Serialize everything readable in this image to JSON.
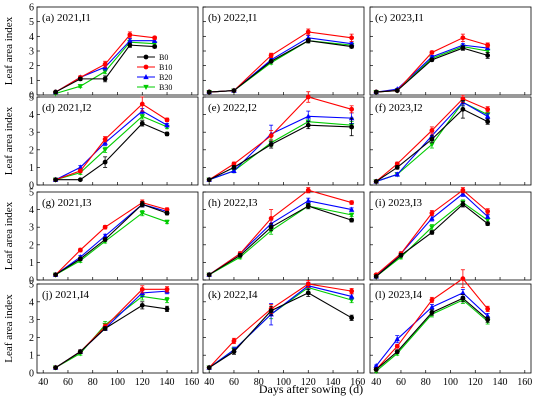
{
  "colors": {
    "B0": "#000000",
    "B10": "#ff0000",
    "B20": "#0000ff",
    "B30": "#00cc00"
  },
  "markers": {
    "B0": "circle",
    "B10": "circle",
    "B20": "triangle",
    "B30": "triangle-down"
  },
  "axes": {
    "ylabel": "Leaf area index",
    "xlabel": "Days after sowing (d)",
    "xticks": [
      40,
      60,
      80,
      100,
      120,
      140,
      160
    ],
    "yticks_top": [
      0,
      1,
      2,
      3,
      4,
      5,
      6
    ],
    "yticks_mid": [
      0,
      1,
      2,
      3,
      4,
      5
    ],
    "yticks_bot": [
      0,
      1,
      2,
      3,
      4,
      5
    ]
  },
  "legend": [
    "B0",
    "B10",
    "B20",
    "B30"
  ],
  "chart_data": [
    {
      "type": "line",
      "panel": "(a) 2021,I1",
      "row": 0,
      "col": 0,
      "ylim": [
        0,
        6
      ],
      "x": [
        50,
        70,
        90,
        110,
        130
      ],
      "series": [
        {
          "name": "B0",
          "values": [
            0.2,
            1.1,
            1.1,
            3.4,
            3.3
          ],
          "err": [
            0.05,
            0.1,
            0.2,
            0.15,
            0.1
          ]
        },
        {
          "name": "B10",
          "values": [
            0.2,
            1.2,
            2.1,
            4.1,
            3.9
          ],
          "err": [
            0.05,
            0.1,
            0.2,
            0.2,
            0.1
          ]
        },
        {
          "name": "B20",
          "values": [
            0.2,
            1.2,
            1.9,
            3.7,
            3.7
          ],
          "err": [
            0.05,
            0.1,
            0.2,
            0.15,
            0.1
          ]
        },
        {
          "name": "B30",
          "values": [
            0.1,
            0.6,
            1.6,
            3.6,
            3.5
          ],
          "err": [
            0.05,
            0.1,
            0.15,
            0.15,
            0.1
          ]
        }
      ]
    },
    {
      "type": "line",
      "panel": "(b) 2022,I1",
      "row": 0,
      "col": 1,
      "ylim": [
        0,
        6
      ],
      "x": [
        40,
        60,
        90,
        120,
        155
      ],
      "series": [
        {
          "name": "B0",
          "values": [
            0.2,
            0.3,
            2.3,
            3.7,
            3.3
          ],
          "err": [
            0.03,
            0.05,
            0.1,
            0.15,
            0.1
          ]
        },
        {
          "name": "B10",
          "values": [
            0.2,
            0.3,
            2.7,
            4.3,
            3.9
          ],
          "err": [
            0.03,
            0.05,
            0.15,
            0.2,
            0.25
          ]
        },
        {
          "name": "B20",
          "values": [
            0.2,
            0.3,
            2.4,
            3.9,
            3.5
          ],
          "err": [
            0.03,
            0.05,
            0.1,
            0.15,
            0.1
          ]
        },
        {
          "name": "B30",
          "values": [
            0.2,
            0.3,
            2.2,
            3.7,
            3.4
          ],
          "err": [
            0.03,
            0.05,
            0.1,
            0.1,
            0.1
          ]
        }
      ]
    },
    {
      "type": "line",
      "panel": "(c) 2023,I1",
      "row": 0,
      "col": 2,
      "ylim": [
        0,
        6
      ],
      "x": [
        40,
        57,
        85,
        110,
        130
      ],
      "series": [
        {
          "name": "B0",
          "values": [
            0.2,
            0.3,
            2.4,
            3.2,
            2.7
          ],
          "err": [
            0.03,
            0.05,
            0.1,
            0.15,
            0.2
          ]
        },
        {
          "name": "B10",
          "values": [
            0.2,
            0.3,
            2.9,
            3.9,
            3.4
          ],
          "err": [
            0.03,
            0.05,
            0.1,
            0.25,
            0.15
          ]
        },
        {
          "name": "B20",
          "values": [
            0.2,
            0.4,
            2.6,
            3.4,
            3.2
          ],
          "err": [
            0.03,
            0.05,
            0.1,
            0.1,
            0.1
          ]
        },
        {
          "name": "B30",
          "values": [
            0.2,
            0.3,
            2.5,
            3.3,
            3.0
          ],
          "err": [
            0.03,
            0.05,
            0.1,
            0.1,
            0.1
          ]
        }
      ]
    },
    {
      "type": "line",
      "panel": "(d) 2021,I2",
      "row": 1,
      "col": 0,
      "ylim": [
        0,
        5
      ],
      "x": [
        50,
        70,
        90,
        120,
        140
      ],
      "series": [
        {
          "name": "B0",
          "values": [
            0.3,
            0.3,
            1.3,
            3.5,
            2.9
          ],
          "err": [
            0.05,
            0.05,
            0.3,
            0.15,
            0.1
          ]
        },
        {
          "name": "B10",
          "values": [
            0.3,
            0.8,
            2.6,
            4.6,
            3.7
          ],
          "err": [
            0.05,
            0.1,
            0.15,
            0.4,
            0.1
          ]
        },
        {
          "name": "B20",
          "values": [
            0.3,
            1.0,
            2.4,
            4.2,
            3.4
          ],
          "err": [
            0.05,
            0.1,
            0.15,
            0.15,
            0.1
          ]
        },
        {
          "name": "B30",
          "values": [
            0.3,
            0.7,
            2.0,
            3.9,
            3.3
          ],
          "err": [
            0.05,
            0.1,
            0.15,
            0.15,
            0.1
          ]
        }
      ]
    },
    {
      "type": "line",
      "panel": "(e) 2022,I2",
      "row": 1,
      "col": 1,
      "ylim": [
        0,
        5
      ],
      "x": [
        40,
        60,
        90,
        120,
        155
      ],
      "series": [
        {
          "name": "B0",
          "values": [
            0.3,
            1.0,
            2.3,
            3.4,
            3.3
          ],
          "err": [
            0.05,
            0.1,
            0.2,
            0.2,
            0.5
          ]
        },
        {
          "name": "B10",
          "values": [
            0.3,
            1.2,
            2.8,
            5.0,
            4.3
          ],
          "err": [
            0.05,
            0.1,
            0.3,
            0.3,
            0.2
          ]
        },
        {
          "name": "B20",
          "values": [
            0.3,
            0.8,
            2.9,
            3.9,
            3.8
          ],
          "err": [
            0.05,
            0.1,
            0.5,
            0.3,
            0.3
          ]
        },
        {
          "name": "B30",
          "values": [
            0.3,
            0.8,
            2.4,
            3.6,
            3.4
          ],
          "err": [
            0.05,
            0.1,
            0.2,
            0.2,
            0.2
          ]
        }
      ]
    },
    {
      "type": "line",
      "panel": "(f) 2023,I2",
      "row": 1,
      "col": 2,
      "ylim": [
        0,
        5
      ],
      "x": [
        40,
        57,
        85,
        110,
        130
      ],
      "series": [
        {
          "name": "B0",
          "values": [
            0.2,
            1.0,
            2.6,
            4.3,
            3.6
          ],
          "err": [
            0.05,
            0.1,
            0.2,
            0.5,
            0.15
          ]
        },
        {
          "name": "B10",
          "values": [
            0.2,
            1.2,
            3.1,
            4.9,
            4.3
          ],
          "err": [
            0.05,
            0.1,
            0.2,
            0.2,
            0.15
          ]
        },
        {
          "name": "B20",
          "values": [
            0.2,
            0.6,
            2.8,
            4.7,
            3.9
          ],
          "err": [
            0.05,
            0.1,
            0.2,
            0.2,
            0.15
          ]
        },
        {
          "name": "B30",
          "values": [
            0.2,
            0.6,
            2.3,
            4.7,
            4.0
          ],
          "err": [
            0.05,
            0.1,
            0.2,
            0.2,
            0.15
          ]
        }
      ]
    },
    {
      "type": "line",
      "panel": "(g) 2021,I3",
      "row": 2,
      "col": 0,
      "ylim": [
        0,
        5
      ],
      "x": [
        50,
        70,
        90,
        120,
        140
      ],
      "series": [
        {
          "name": "B0",
          "values": [
            0.3,
            1.2,
            2.3,
            4.3,
            3.8
          ],
          "err": [
            0.05,
            0.1,
            0.1,
            0.15,
            0.1
          ]
        },
        {
          "name": "B10",
          "values": [
            0.3,
            1.7,
            3.0,
            4.4,
            4.0
          ],
          "err": [
            0.05,
            0.1,
            0.1,
            0.15,
            0.1
          ]
        },
        {
          "name": "B20",
          "values": [
            0.3,
            1.3,
            2.5,
            4.3,
            3.9
          ],
          "err": [
            0.05,
            0.1,
            0.1,
            0.15,
            0.1
          ]
        },
        {
          "name": "B30",
          "values": [
            0.3,
            1.1,
            2.2,
            3.8,
            3.3
          ],
          "err": [
            0.05,
            0.1,
            0.1,
            0.15,
            0.1
          ]
        }
      ]
    },
    {
      "type": "line",
      "panel": "(h) 2022,I3",
      "row": 2,
      "col": 1,
      "ylim": [
        0,
        5
      ],
      "x": [
        40,
        65,
        90,
        120,
        155
      ],
      "series": [
        {
          "name": "B0",
          "values": [
            0.3,
            1.4,
            3.0,
            4.2,
            3.4
          ],
          "err": [
            0.05,
            0.1,
            0.2,
            0.15,
            0.1
          ]
        },
        {
          "name": "B10",
          "values": [
            0.3,
            1.5,
            3.5,
            5.1,
            4.4
          ],
          "err": [
            0.05,
            0.1,
            0.5,
            0.15,
            0.1
          ]
        },
        {
          "name": "B20",
          "values": [
            0.3,
            1.5,
            3.2,
            4.5,
            4.0
          ],
          "err": [
            0.05,
            0.1,
            0.2,
            0.15,
            0.1
          ]
        },
        {
          "name": "B30",
          "values": [
            0.3,
            1.3,
            2.8,
            4.2,
            3.7
          ],
          "err": [
            0.05,
            0.1,
            0.2,
            0.15,
            0.1
          ]
        }
      ]
    },
    {
      "type": "line",
      "panel": "(i) 2023,I3",
      "row": 2,
      "col": 2,
      "ylim": [
        0,
        5
      ],
      "x": [
        40,
        60,
        85,
        110,
        130
      ],
      "series": [
        {
          "name": "B0",
          "values": [
            0.2,
            1.4,
            2.7,
            4.3,
            3.2
          ],
          "err": [
            0.05,
            0.1,
            0.1,
            0.15,
            0.1
          ]
        },
        {
          "name": "B10",
          "values": [
            0.3,
            1.5,
            3.8,
            5.1,
            3.9
          ],
          "err": [
            0.05,
            0.1,
            0.15,
            0.15,
            0.15
          ]
        },
        {
          "name": "B20",
          "values": [
            0.2,
            1.5,
            3.5,
            4.9,
            3.6
          ],
          "err": [
            0.05,
            0.1,
            0.15,
            0.15,
            0.1
          ]
        },
        {
          "name": "B30",
          "values": [
            0.2,
            1.3,
            3.0,
            4.4,
            3.4
          ],
          "err": [
            0.05,
            0.1,
            0.15,
            0.15,
            0.1
          ]
        }
      ]
    },
    {
      "type": "line",
      "panel": "(j) 2021,I4",
      "row": 3,
      "col": 0,
      "ylim": [
        0,
        5
      ],
      "x": [
        50,
        70,
        90,
        120,
        140
      ],
      "series": [
        {
          "name": "B0",
          "values": [
            0.3,
            1.2,
            2.5,
            3.8,
            3.6
          ],
          "err": [
            0.05,
            0.1,
            0.1,
            0.2,
            0.15
          ]
        },
        {
          "name": "B10",
          "values": [
            0.3,
            1.2,
            2.6,
            4.7,
            4.7
          ],
          "err": [
            0.05,
            0.1,
            0.15,
            0.2,
            0.15
          ]
        },
        {
          "name": "B20",
          "values": [
            0.3,
            1.2,
            2.5,
            4.5,
            4.6
          ],
          "err": [
            0.05,
            0.1,
            0.1,
            0.2,
            0.15
          ]
        },
        {
          "name": "B30",
          "values": [
            0.3,
            1.1,
            2.7,
            4.3,
            4.1
          ],
          "err": [
            0.05,
            0.1,
            0.2,
            0.2,
            0.15
          ]
        }
      ]
    },
    {
      "type": "line",
      "panel": "(k) 2022,I4",
      "row": 3,
      "col": 1,
      "ylim": [
        0,
        5
      ],
      "x": [
        40,
        60,
        90,
        120,
        155
      ],
      "series": [
        {
          "name": "B0",
          "values": [
            0.3,
            1.2,
            3.5,
            4.5,
            3.1
          ],
          "err": [
            0.05,
            0.15,
            0.25,
            0.2,
            0.15
          ]
        },
        {
          "name": "B10",
          "values": [
            0.3,
            1.8,
            3.6,
            5.0,
            4.6
          ],
          "err": [
            0.05,
            0.15,
            0.25,
            0.2,
            0.15
          ]
        },
        {
          "name": "B20",
          "values": [
            0.3,
            1.3,
            3.3,
            4.9,
            4.3
          ],
          "err": [
            0.05,
            0.15,
            0.6,
            0.2,
            0.15
          ]
        },
        {
          "name": "B30",
          "values": [
            0.3,
            1.3,
            3.3,
            4.8,
            4.1
          ],
          "err": [
            0.05,
            0.15,
            0.25,
            0.2,
            0.15
          ]
        }
      ]
    },
    {
      "type": "line",
      "panel": "(l) 2023,I4",
      "row": 3,
      "col": 2,
      "ylim": [
        0,
        5
      ],
      "x": [
        40,
        57,
        85,
        110,
        130
      ],
      "series": [
        {
          "name": "B0",
          "values": [
            0.2,
            1.2,
            3.4,
            4.2,
            3.0
          ],
          "err": [
            0.05,
            0.1,
            0.15,
            0.2,
            0.15
          ]
        },
        {
          "name": "B10",
          "values": [
            0.2,
            1.5,
            4.1,
            5.3,
            3.6
          ],
          "err": [
            0.05,
            0.1,
            0.15,
            0.5,
            0.15
          ]
        },
        {
          "name": "B20",
          "values": [
            0.4,
            1.9,
            3.7,
            4.5,
            3.2
          ],
          "err": [
            0.05,
            0.2,
            0.15,
            0.2,
            0.15
          ]
        },
        {
          "name": "B30",
          "values": [
            0.1,
            1.1,
            3.3,
            4.1,
            2.9
          ],
          "err": [
            0.05,
            0.1,
            0.15,
            0.2,
            0.15
          ]
        }
      ]
    }
  ]
}
